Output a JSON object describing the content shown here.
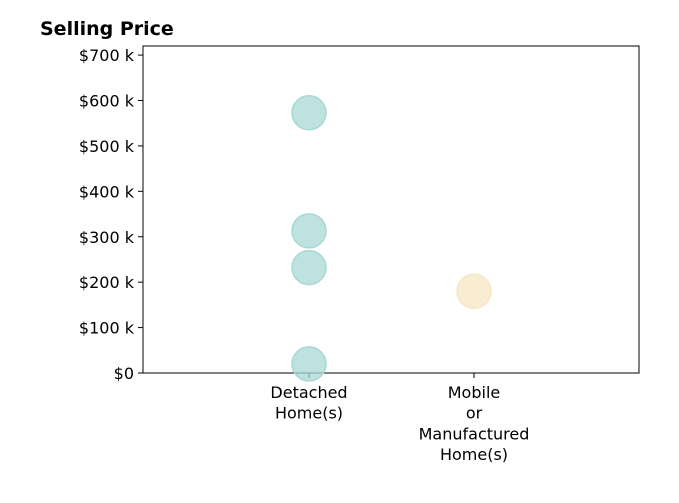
{
  "chart_data": {
    "type": "scatter",
    "title": "Selling Price",
    "xlabel": "",
    "ylabel": "",
    "categories": [
      "Detached\nHome(s)",
      "Mobile\nor\nManufactured\nHome(s)"
    ],
    "ylim": [
      0,
      720000
    ],
    "yticks": [
      {
        "value": 0,
        "label": "$0"
      },
      {
        "value": 100000,
        "label": "$100 k"
      },
      {
        "value": 200000,
        "label": "$200 k"
      },
      {
        "value": 300000,
        "label": "$300 k"
      },
      {
        "value": 400000,
        "label": "$400 k"
      },
      {
        "value": 500000,
        "label": "$500 k"
      },
      {
        "value": 600000,
        "label": "$600 k"
      },
      {
        "value": 700000,
        "label": "$700 k"
      }
    ],
    "points": [
      {
        "category": 0,
        "value": 573000,
        "color": "#a8d8d4"
      },
      {
        "category": 0,
        "value": 313000,
        "color": "#a8d8d4"
      },
      {
        "category": 0,
        "value": 232000,
        "color": "#a8d8d4"
      },
      {
        "category": 0,
        "value": 20000,
        "color": "#a8d8d4"
      },
      {
        "category": 1,
        "value": 180000,
        "color": "#f5e6c4"
      }
    ],
    "grid": false,
    "legend": "none"
  }
}
